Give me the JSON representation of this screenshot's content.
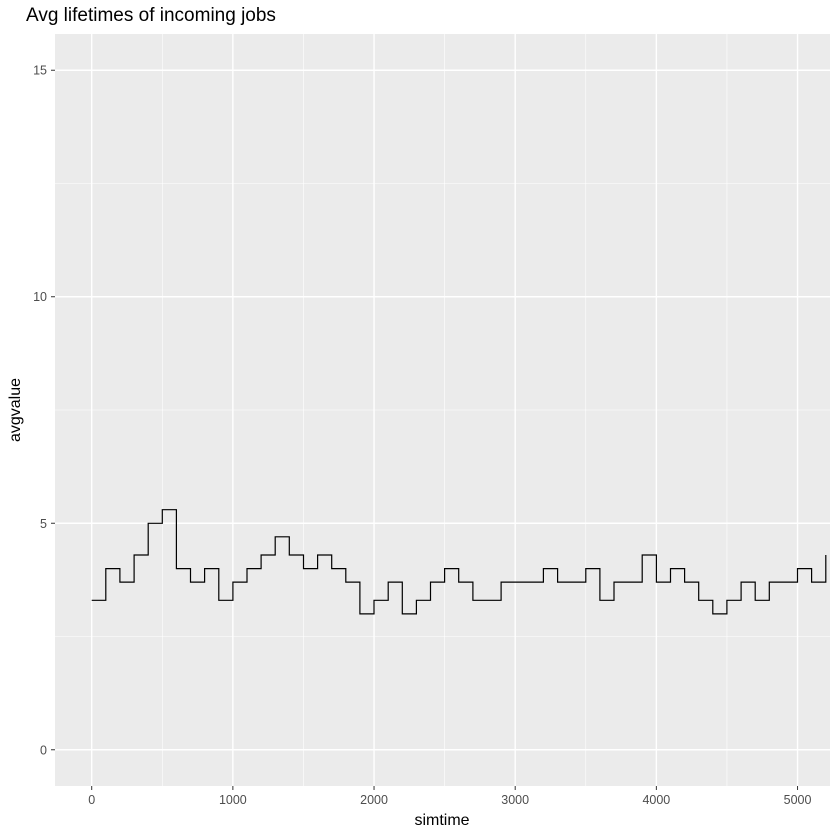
{
  "chart_data": {
    "type": "line",
    "title": "Avg lifetimes of incoming jobs",
    "xlabel": "simtime",
    "ylabel": "avgvalue",
    "xlim": [
      -260,
      5230
    ],
    "ylim": [
      -0.8,
      15.8
    ],
    "x_ticks": [
      0,
      1000,
      2000,
      3000,
      4000,
      5000
    ],
    "y_ticks": [
      0,
      5,
      10,
      15
    ],
    "x_tick_labels": [
      "0",
      "1000",
      "2000",
      "3000",
      "4000",
      "5000"
    ],
    "y_tick_labels": [
      "0",
      "5",
      "10",
      "15"
    ],
    "grid": true,
    "line_style": "step",
    "colors": {
      "panel": "#ebebeb",
      "grid": "#ffffff",
      "line": "#000000",
      "ticks": "#333333"
    },
    "series": [
      {
        "x": [
          0,
          100,
          200,
          300,
          400,
          500,
          600,
          700,
          800,
          900,
          1000,
          1100,
          1200,
          1300,
          1400,
          1500,
          1600,
          1700,
          1800,
          1900,
          2000,
          2100,
          2200,
          2300,
          2400,
          2500,
          2600,
          2700,
          2800,
          2900,
          3000,
          3100,
          3200,
          3300,
          3400,
          3500,
          3600,
          3700,
          3800,
          3900,
          4000,
          4100,
          4200,
          4300,
          4400,
          4500,
          4600,
          4700,
          4800,
          4900,
          5000,
          5100,
          5200
        ],
        "y": [
          3.3,
          4.0,
          3.7,
          4.3,
          5.0,
          5.3,
          4.0,
          3.7,
          4.0,
          3.3,
          3.7,
          4.0,
          4.3,
          4.7,
          4.3,
          4.0,
          4.3,
          4.0,
          3.7,
          3.0,
          3.3,
          3.7,
          3.0,
          3.3,
          3.7,
          4.0,
          3.7,
          3.3,
          3.3,
          3.7,
          3.7,
          3.7,
          4.0,
          3.7,
          3.7,
          4.0,
          3.3,
          3.7,
          3.7,
          4.3,
          3.7,
          4.0,
          3.7,
          3.3,
          3.0,
          3.3,
          3.7,
          3.3,
          3.7,
          3.7,
          4.0,
          3.7,
          4.3
        ]
      }
    ]
  }
}
